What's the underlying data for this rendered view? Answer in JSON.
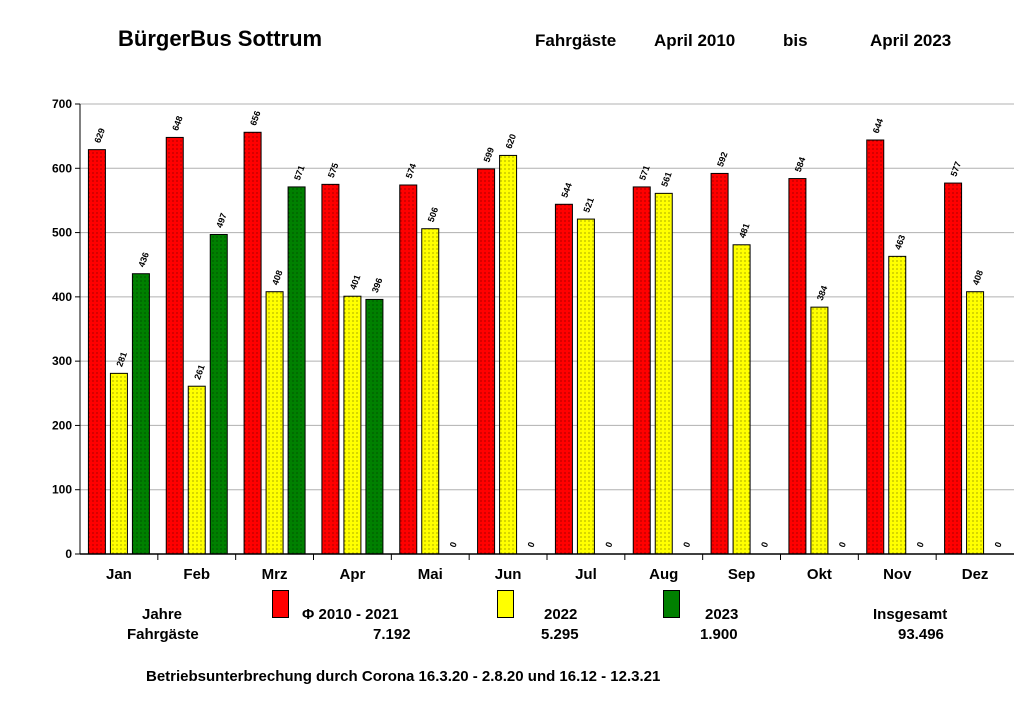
{
  "header": {
    "title": "BürgerBus Sottrum",
    "label": "Fahrgäste",
    "from": "April 2010",
    "bis": "bis",
    "to": "April 2023"
  },
  "chart_data": {
    "type": "bar",
    "ylim": [
      0,
      700
    ],
    "yticks": [
      "0",
      "100",
      "200",
      "300",
      "400",
      "500",
      "600",
      "700"
    ],
    "grid": true,
    "categories": [
      "Jan",
      "Feb",
      "Mrz",
      "Apr",
      "Mai",
      "Jun",
      "Jul",
      "Aug",
      "Sep",
      "Okt",
      "Nov",
      "Dez"
    ],
    "series": [
      {
        "name": "Φ 2010 - 2021",
        "color": "#ff0000",
        "values": [
          629,
          648,
          656,
          575,
          574,
          599,
          544,
          571,
          592,
          584,
          644,
          577
        ]
      },
      {
        "name": "2022",
        "color": "#ffff00",
        "values": [
          281,
          261,
          408,
          401,
          506,
          620,
          521,
          561,
          481,
          384,
          463,
          408
        ]
      },
      {
        "name": "2023",
        "color": "#008000",
        "values": [
          436,
          497,
          571,
          396,
          0,
          0,
          0,
          0,
          0,
          0,
          0,
          0
        ]
      }
    ]
  },
  "legend": {
    "jahre_label": "Jahre",
    "fahrgaeste_label": "Fahrgäste",
    "entries": [
      {
        "label": "Φ 2010 - 2021",
        "total": "7.192",
        "color": "#ff0000"
      },
      {
        "label": "2022",
        "total": "5.295",
        "color": "#ffff00"
      },
      {
        "label": "2023",
        "total": "1.900",
        "color": "#008000"
      }
    ],
    "insgesamt_label": "Insgesamt",
    "insgesamt_value": "93.496"
  },
  "footnote": "Betriebsunterbrechung durch Corona  16.3.20 - 2.8.20 und 16.12 - 12.3.21"
}
